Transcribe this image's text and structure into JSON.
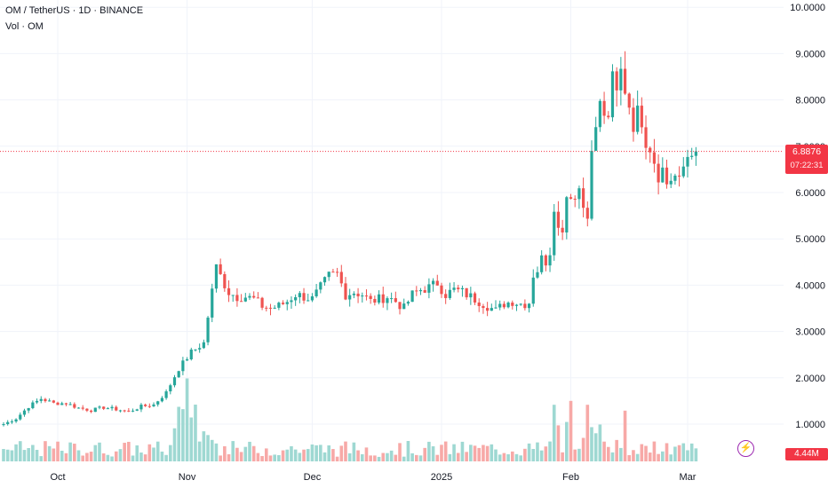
{
  "legend": {
    "symbol_line": "OM / TetherUS · 1D · BINANCE",
    "volume_line": "Vol · OM"
  },
  "price_axis": {
    "ticks": [
      "10.0000",
      "9.0000",
      "8.0000",
      "7.0000",
      "6.0000",
      "5.0000",
      "4.0000",
      "3.0000",
      "2.0000",
      "1.0000"
    ],
    "current_price": "6.8876",
    "countdown": "07:22:31",
    "volume_value": "4.44M"
  },
  "time_axis": {
    "labels": [
      "Oct",
      "Nov",
      "Dec",
      "2025",
      "Feb",
      "Mar"
    ]
  },
  "colors": {
    "up": "#26a69a",
    "down": "#ef5350",
    "up_volume": "#9ed8d2",
    "down_volume": "#f7a9a7",
    "grid": "#f0f3fa",
    "price_line": "#f23645"
  },
  "icons": {
    "flash": "lightning-icon"
  },
  "chart_data": {
    "type": "candlestick",
    "title": "OM / TetherUS · 1D · BINANCE",
    "ylim": [
      0.65,
      10.1
    ],
    "grid": true,
    "x_ticks": [
      {
        "label": "Oct",
        "index": 13
      },
      {
        "label": "Nov",
        "index": 44
      },
      {
        "label": "Dec",
        "index": 74
      },
      {
        "label": "2025",
        "index": 105
      },
      {
        "label": "Feb",
        "index": 136
      },
      {
        "label": "Mar",
        "index": 164
      }
    ],
    "segments": [
      [
        1.0,
        1.12,
        1.38,
        1.55,
        1.45,
        1.45,
        1.35,
        1.3,
        1.36,
        1.32,
        1.27,
        1.38,
        1.42,
        1.68,
        2.2,
        2.55,
        2.75,
        4.45
      ],
      [
        4.2,
        3.85,
        3.75,
        3.75,
        3.7,
        3.55,
        3.5,
        3.55,
        3.65,
        3.8,
        3.75,
        3.7,
        3.95,
        4.2,
        4.25,
        3.8,
        3.85,
        3.8,
        3.65,
        3.7,
        3.75,
        3.65,
        3.5,
        3.8,
        3.9,
        3.95,
        4.05,
        3.8,
        3.9,
        3.85,
        3.75,
        3.65,
        3.55,
        3.45,
        3.6,
        3.65,
        3.6,
        3.6
      ],
      [
        4.2,
        4.35,
        4.7,
        4.35,
        4.75,
        5.7,
        5.4,
        5.1,
        6.05,
        5.9,
        6.0,
        6.1,
        5.7,
        5.6,
        6.9
      ],
      [
        7.3,
        8.0,
        7.55,
        7.7,
        8.4,
        8.1,
        8.6,
        8.25,
        7.9,
        7.5,
        7.7,
        7.6,
        7.15,
        7.0,
        6.7,
        6.4,
        6.5,
        6.2,
        6.3,
        6.35,
        6.2,
        6.55,
        6.8,
        6.95,
        6.89
      ]
    ],
    "volume": {
      "baseline_value": "4.44M",
      "spikes": [
        {
          "index": 44,
          "relative": 0.85
        },
        {
          "index": 45,
          "relative": 0.45
        },
        {
          "index": 132,
          "relative": 0.58
        },
        {
          "index": 136,
          "relative": 0.62
        },
        {
          "index": 140,
          "relative": 0.58
        },
        {
          "index": 149,
          "relative": 0.52
        }
      ]
    },
    "last_price": 6.8876
  }
}
